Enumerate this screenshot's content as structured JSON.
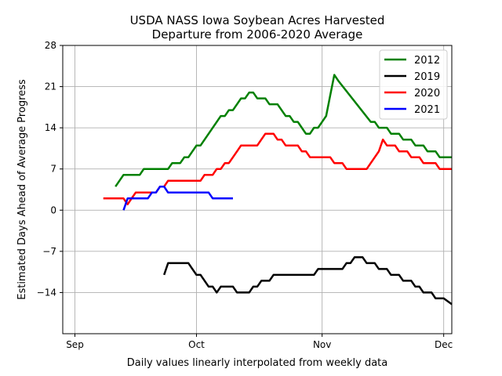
{
  "chart_data": {
    "type": "line",
    "title": "USDA NASS Iowa Soybean Acres Harvested",
    "subtitle": "Departure from 2006-2020 Average",
    "xlabel": "Daily values linearly interpolated from weekly data",
    "ylabel": "Estimated Days Ahead of Average Progress",
    "xlim": [
      "2000-08-29",
      "2000-12-03"
    ],
    "ylim": [
      -21,
      28
    ],
    "grid": true,
    "legend_position": "top-right",
    "x_ticks": [
      {
        "label": "Sep",
        "date": "2000-09-01"
      },
      {
        "label": "Oct",
        "date": "2000-10-01"
      },
      {
        "label": "Nov",
        "date": "2000-11-01"
      },
      {
        "label": "Dec",
        "date": "2000-12-01"
      }
    ],
    "y_ticks": [
      -14,
      -7,
      0,
      7,
      14,
      21,
      28
    ],
    "series": [
      {
        "name": "2012",
        "color": "#008000",
        "points": [
          [
            "2000-09-11",
            4
          ],
          [
            "2000-09-13",
            6
          ],
          [
            "2000-09-17",
            6
          ],
          [
            "2000-09-18",
            7
          ],
          [
            "2000-09-24",
            7
          ],
          [
            "2000-09-25",
            8
          ],
          [
            "2000-09-27",
            8
          ],
          [
            "2000-09-28",
            9
          ],
          [
            "2000-09-29",
            9
          ],
          [
            "2000-10-01",
            11
          ],
          [
            "2000-10-02",
            11
          ],
          [
            "2000-10-07",
            16
          ],
          [
            "2000-10-08",
            16
          ],
          [
            "2000-10-09",
            17
          ],
          [
            "2000-10-10",
            17
          ],
          [
            "2000-10-12",
            19
          ],
          [
            "2000-10-13",
            19
          ],
          [
            "2000-10-14",
            20
          ],
          [
            "2000-10-15",
            20
          ],
          [
            "2000-10-16",
            19
          ],
          [
            "2000-10-18",
            19
          ],
          [
            "2000-10-19",
            18
          ],
          [
            "2000-10-21",
            18
          ],
          [
            "2000-10-23",
            16
          ],
          [
            "2000-10-24",
            16
          ],
          [
            "2000-10-25",
            15
          ],
          [
            "2000-10-26",
            15
          ],
          [
            "2000-10-28",
            13
          ],
          [
            "2000-10-29",
            13
          ],
          [
            "2000-10-30",
            14
          ],
          [
            "2000-10-31",
            14
          ],
          [
            "2000-11-02",
            16
          ],
          [
            "2000-11-03",
            19.5
          ],
          [
            "2000-11-04",
            23
          ],
          [
            "2000-11-05",
            22
          ],
          [
            "2000-11-13",
            15
          ],
          [
            "2000-11-14",
            15
          ],
          [
            "2000-11-15",
            14
          ],
          [
            "2000-11-17",
            14
          ],
          [
            "2000-11-18",
            13
          ],
          [
            "2000-11-20",
            13
          ],
          [
            "2000-11-21",
            12
          ],
          [
            "2000-11-23",
            12
          ],
          [
            "2000-11-24",
            11
          ],
          [
            "2000-11-26",
            11
          ],
          [
            "2000-11-27",
            10
          ],
          [
            "2000-11-29",
            10
          ],
          [
            "2000-11-30",
            9
          ],
          [
            "2000-12-03",
            9
          ]
        ]
      },
      {
        "name": "2019",
        "color": "#000000",
        "points": [
          [
            "2000-09-23",
            -11
          ],
          [
            "2000-09-24",
            -9
          ],
          [
            "2000-09-29",
            -9
          ],
          [
            "2000-09-30",
            -10
          ],
          [
            "2000-10-01",
            -11
          ],
          [
            "2000-10-02",
            -11
          ],
          [
            "2000-10-04",
            -13
          ],
          [
            "2000-10-05",
            -13
          ],
          [
            "2000-10-06",
            -14
          ],
          [
            "2000-10-07",
            -13
          ],
          [
            "2000-10-10",
            -13
          ],
          [
            "2000-10-11",
            -14
          ],
          [
            "2000-10-14",
            -14
          ],
          [
            "2000-10-15",
            -13
          ],
          [
            "2000-10-16",
            -13
          ],
          [
            "2000-10-17",
            -12
          ],
          [
            "2000-10-19",
            -12
          ],
          [
            "2000-10-20",
            -11
          ],
          [
            "2000-10-30",
            -11
          ],
          [
            "2000-10-31",
            -10
          ],
          [
            "2000-11-06",
            -10
          ],
          [
            "2000-11-07",
            -9
          ],
          [
            "2000-11-08",
            -9
          ],
          [
            "2000-11-09",
            -8
          ],
          [
            "2000-11-11",
            -8
          ],
          [
            "2000-11-12",
            -9
          ],
          [
            "2000-11-14",
            -9
          ],
          [
            "2000-11-15",
            -10
          ],
          [
            "2000-11-17",
            -10
          ],
          [
            "2000-11-18",
            -11
          ],
          [
            "2000-11-20",
            -11
          ],
          [
            "2000-11-21",
            -12
          ],
          [
            "2000-11-23",
            -12
          ],
          [
            "2000-11-24",
            -13
          ],
          [
            "2000-11-25",
            -13
          ],
          [
            "2000-11-26",
            -14
          ],
          [
            "2000-11-28",
            -14
          ],
          [
            "2000-11-29",
            -15
          ],
          [
            "2000-12-01",
            -15
          ],
          [
            "2000-12-03",
            -16
          ]
        ]
      },
      {
        "name": "2020",
        "color": "#ff0000",
        "points": [
          [
            "2000-09-08",
            2
          ],
          [
            "2000-09-13",
            2
          ],
          [
            "2000-09-14",
            1
          ],
          [
            "2000-09-15",
            2
          ],
          [
            "2000-09-16",
            3
          ],
          [
            "2000-09-21",
            3
          ],
          [
            "2000-09-22",
            4
          ],
          [
            "2000-09-23",
            4
          ],
          [
            "2000-09-24",
            5
          ],
          [
            "2000-10-02",
            5
          ],
          [
            "2000-10-03",
            6
          ],
          [
            "2000-10-05",
            6
          ],
          [
            "2000-10-06",
            7
          ],
          [
            "2000-10-07",
            7
          ],
          [
            "2000-10-08",
            8
          ],
          [
            "2000-10-09",
            8
          ],
          [
            "2000-10-11",
            10
          ],
          [
            "2000-10-12",
            11
          ],
          [
            "2000-10-16",
            11
          ],
          [
            "2000-10-18",
            13
          ],
          [
            "2000-10-20",
            13
          ],
          [
            "2000-10-21",
            12
          ],
          [
            "2000-10-22",
            12
          ],
          [
            "2000-10-23",
            11
          ],
          [
            "2000-10-26",
            11
          ],
          [
            "2000-10-27",
            10
          ],
          [
            "2000-10-28",
            10
          ],
          [
            "2000-10-29",
            9
          ],
          [
            "2000-11-03",
            9
          ],
          [
            "2000-11-04",
            8
          ],
          [
            "2000-11-06",
            8
          ],
          [
            "2000-11-07",
            7
          ],
          [
            "2000-11-12",
            7
          ],
          [
            "2000-11-15",
            10
          ],
          [
            "2000-11-16",
            12
          ],
          [
            "2000-11-17",
            11
          ],
          [
            "2000-11-19",
            11
          ],
          [
            "2000-11-20",
            10
          ],
          [
            "2000-11-22",
            10
          ],
          [
            "2000-11-23",
            9
          ],
          [
            "2000-11-25",
            9
          ],
          [
            "2000-11-26",
            8
          ],
          [
            "2000-11-29",
            8
          ],
          [
            "2000-11-30",
            7
          ],
          [
            "2000-12-03",
            7
          ]
        ]
      },
      {
        "name": "2021",
        "color": "#0000ff",
        "points": [
          [
            "2000-09-13",
            0
          ],
          [
            "2000-09-14",
            2
          ],
          [
            "2000-09-19",
            2
          ],
          [
            "2000-09-20",
            3
          ],
          [
            "2000-09-21",
            3
          ],
          [
            "2000-09-22",
            4
          ],
          [
            "2000-09-23",
            4
          ],
          [
            "2000-09-24",
            3
          ],
          [
            "2000-10-04",
            3
          ],
          [
            "2000-10-05",
            2
          ],
          [
            "2000-10-10",
            2
          ]
        ]
      }
    ]
  }
}
